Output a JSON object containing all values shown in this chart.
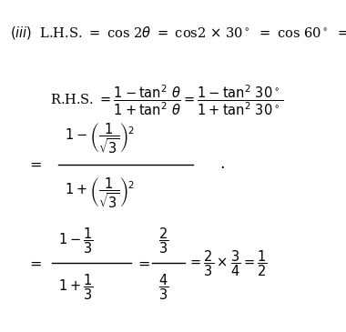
{
  "background_color": "#ffffff",
  "figsize": [
    3.8,
    3.65
  ],
  "dpi": 100,
  "fs": 10.5
}
